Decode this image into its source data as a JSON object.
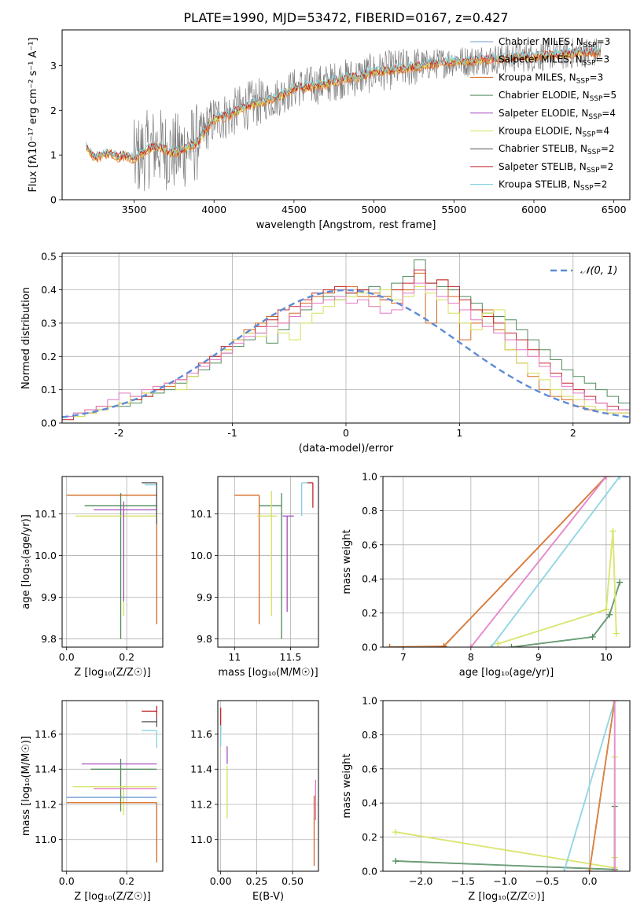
{
  "suptitle": "PLATE=1990, MJD=53472, FIBERID=0167, z=0.427",
  "colors": {
    "Chabrier MILES": "#6c9bd2",
    "Salpeter MILES": "#e8884c",
    "Kroupa MILES": "#d2691e",
    "Chabrier ELODIE": "#4f8a5b",
    "Salpeter ELODIE": "#a64dbf",
    "Kroupa ELODIE": "#d4e157",
    "Chabrier STELIB": "#555555",
    "Salpeter STELIB": "#c0262d",
    "Kroupa STELIB": "#7fd0df",
    "extra": "#e377c2",
    "normal": "#5b8bd6"
  },
  "chart_data": [
    {
      "id": "spectrum",
      "type": "line",
      "xlabel": "wavelength [Angstrom, rest frame]",
      "ylabel": "Flux [f$_\\lambda$ 10$^{-17}$ erg cm$^{-2}$ s$^{-1}$ A$^{-1}$]",
      "ylabel_text": "Flux [fλ10⁻¹⁷ erg cm⁻² s⁻¹ A⁻¹]",
      "xlim": [
        3050,
        6600
      ],
      "ylim": [
        0,
        3.8
      ],
      "xticks": [
        3500,
        4000,
        4500,
        5000,
        5500,
        6000,
        6500
      ],
      "yticks": [
        0,
        1,
        2,
        3
      ],
      "legend_position": "upper right",
      "legend": [
        {
          "label": "Chabrier MILES",
          "nssp": "3"
        },
        {
          "label": "Salpeter MILES",
          "nssp": "3"
        },
        {
          "label": "Kroupa MILES",
          "nssp": "3"
        },
        {
          "label": "Chabrier ELODIE",
          "nssp": "5"
        },
        {
          "label": "Salpeter ELODIE",
          "nssp": "4"
        },
        {
          "label": "Kroupa ELODIE",
          "nssp": "4"
        },
        {
          "label": "Chabrier STELIB",
          "nssp": "2"
        },
        {
          "label": "Salpeter STELIB",
          "nssp": "2"
        },
        {
          "label": "Kroupa STELIB",
          "nssp": "2"
        }
      ],
      "model_curve": {
        "x": [
          3200,
          3250,
          3300,
          3350,
          3400,
          3450,
          3500,
          3550,
          3600,
          3650,
          3700,
          3750,
          3800,
          3850,
          3900,
          3950,
          4000,
          4100,
          4200,
          4300,
          4400,
          4500,
          4600,
          4700,
          4800,
          4900,
          5000,
          5100,
          5200,
          5300,
          5400,
          5500,
          5600,
          5700,
          5800,
          5900,
          6000,
          6100,
          6200,
          6300,
          6400
        ],
        "y": [
          1.2,
          0.95,
          1.0,
          1.05,
          0.95,
          1.0,
          0.9,
          1.05,
          1.15,
          1.2,
          1.1,
          1.05,
          1.1,
          1.2,
          1.3,
          1.6,
          1.8,
          1.9,
          2.1,
          2.2,
          2.3,
          2.5,
          2.55,
          2.6,
          2.7,
          2.75,
          2.85,
          2.9,
          2.95,
          3.0,
          3.05,
          3.1,
          3.1,
          3.15,
          3.15,
          3.2,
          3.2,
          3.25,
          3.25,
          3.3,
          3.3
        ]
      }
    },
    {
      "id": "residuals",
      "type": "histogram",
      "xlabel": "(data-model)/error",
      "ylabel": "Normed distribution",
      "xlim": [
        -2.5,
        2.5
      ],
      "ylim": [
        0,
        0.51
      ],
      "xticks": [
        -2,
        -1,
        0,
        1,
        2
      ],
      "yticks": [
        0.0,
        0.1,
        0.2,
        0.3,
        0.4,
        0.5
      ],
      "grid": true,
      "legend": "$\\mathcal{N}(0,1)$",
      "legend_text": "𝒩(0, 1)",
      "bin_width": 0.1,
      "series": [
        {
          "name": "Chabrier ELODIE",
          "values": [
            0.02,
            0.03,
            0.03,
            0.04,
            0.05,
            0.05,
            0.06,
            0.08,
            0.09,
            0.1,
            0.12,
            0.14,
            0.16,
            0.18,
            0.21,
            0.23,
            0.25,
            0.27,
            0.24,
            0.28,
            0.32,
            0.34,
            0.36,
            0.38,
            0.37,
            0.39,
            0.4,
            0.41,
            0.38,
            0.42,
            0.44,
            0.49,
            0.42,
            0.41,
            0.4,
            0.38,
            0.36,
            0.33,
            0.32,
            0.31,
            0.28,
            0.25,
            0.22,
            0.19,
            0.16,
            0.14,
            0.12,
            0.1,
            0.08,
            0.06
          ]
        },
        {
          "name": "Kroupa MILES",
          "values": [
            0.02,
            0.02,
            0.04,
            0.05,
            0.05,
            0.06,
            0.07,
            0.09,
            0.1,
            0.11,
            0.13,
            0.15,
            0.17,
            0.2,
            0.22,
            0.25,
            0.28,
            0.3,
            0.32,
            0.3,
            0.33,
            0.36,
            0.38,
            0.39,
            0.4,
            0.41,
            0.38,
            0.39,
            0.38,
            0.36,
            0.4,
            0.45,
            0.3,
            0.43,
            0.38,
            0.25,
            0.3,
            0.34,
            0.28,
            0.22,
            0.18,
            0.14,
            0.1,
            0.08,
            0.07,
            0.05,
            0.04,
            0.04,
            0.03,
            0.03
          ]
        },
        {
          "name": "Salpeter STELIB",
          "values": [
            0.01,
            0.02,
            0.03,
            0.04,
            0.05,
            0.06,
            0.07,
            0.08,
            0.1,
            0.12,
            0.13,
            0.15,
            0.18,
            0.2,
            0.23,
            0.25,
            0.27,
            0.29,
            0.31,
            0.34,
            0.35,
            0.37,
            0.39,
            0.4,
            0.41,
            0.39,
            0.4,
            0.38,
            0.37,
            0.4,
            0.42,
            0.46,
            0.42,
            0.43,
            0.41,
            0.37,
            0.34,
            0.32,
            0.3,
            0.27,
            0.25,
            0.22,
            0.18,
            0.15,
            0.12,
            0.1,
            0.08,
            0.06,
            0.05,
            0.04
          ]
        },
        {
          "name": "Kroupa ELODIE",
          "values": [
            0.02,
            0.02,
            0.03,
            0.04,
            0.05,
            0.06,
            0.08,
            0.09,
            0.11,
            0.12,
            0.1,
            0.14,
            0.17,
            0.19,
            0.22,
            0.25,
            0.27,
            0.26,
            0.29,
            0.27,
            0.25,
            0.3,
            0.33,
            0.35,
            0.37,
            0.38,
            0.39,
            0.35,
            0.4,
            0.37,
            0.38,
            0.41,
            0.39,
            0.37,
            0.33,
            0.3,
            0.28,
            0.33,
            0.34,
            0.22,
            0.18,
            0.15,
            0.13,
            0.1,
            0.08,
            0.07,
            0.05,
            0.04,
            0.03,
            0.03
          ]
        },
        {
          "name": "extra",
          "values": [
            0.02,
            0.03,
            0.04,
            0.05,
            0.07,
            0.09,
            0.08,
            0.1,
            0.11,
            0.12,
            0.13,
            0.15,
            0.17,
            0.19,
            0.21,
            0.24,
            0.26,
            0.27,
            0.29,
            0.3,
            0.32,
            0.35,
            0.36,
            0.37,
            0.38,
            0.36,
            0.37,
            0.35,
            0.33,
            0.34,
            0.39,
            0.42,
            0.4,
            0.38,
            0.36,
            0.34,
            0.31,
            0.29,
            0.27,
            0.25,
            0.22,
            0.2,
            0.17,
            0.14,
            0.11,
            0.09,
            0.07,
            0.06,
            0.04,
            0.04
          ]
        }
      ],
      "normal_curve": {
        "name": "𝒩(0, 1)",
        "mean": 0,
        "sigma": 1
      }
    },
    {
      "id": "age_vs_Z",
      "type": "errorbar",
      "xlabel": "Z [log$_{10}$(Z/Z$_\\odot$)]",
      "xlabel_text": "Z [log₁₀(Z/Z☉)]",
      "ylabel": "age  [log$_{10}$(age/yr)]",
      "ylabel_text": "age  [log₁₀(age/yr)]",
      "xlim": [
        -0.015,
        0.32
      ],
      "ylim": [
        9.78,
        10.19
      ],
      "xticks": [
        0.0,
        0.2
      ],
      "yticks": [
        9.8,
        9.9,
        10.0,
        10.1
      ],
      "points": [
        {
          "s": "Kroupa MILES",
          "x": 0.3,
          "y": 10.145,
          "xerr": [
            0.3,
            0.0
          ],
          "yerr": [
            0.31,
            0.0
          ]
        },
        {
          "s": "Chabrier ELODIE",
          "x": 0.18,
          "y": 10.12,
          "xerr": [
            0.12,
            0.12
          ],
          "yerr": [
            0.32,
            0.03
          ]
        },
        {
          "s": "Kroupa ELODIE",
          "x": 0.19,
          "y": 10.095,
          "xerr": [
            0.16,
            0.11
          ],
          "yerr": [
            0.24,
            0.03
          ]
        },
        {
          "s": "Salpeter ELODIE",
          "x": 0.19,
          "y": 10.11,
          "xerr": [
            0.1,
            0.11
          ],
          "yerr": [
            0.22,
            0.02
          ]
        },
        {
          "s": "Kroupa STELIB",
          "x": 0.3,
          "y": 10.17,
          "xerr": [
            0.04,
            0.0
          ],
          "yerr": [
            0.08,
            0.0
          ]
        },
        {
          "s": "Chabrier STELIB",
          "x": 0.3,
          "y": 10.175,
          "xerr": [
            0.05,
            0.0
          ],
          "yerr": [
            0.1,
            0.0
          ]
        }
      ]
    },
    {
      "id": "age_vs_mass",
      "type": "errorbar",
      "xlabel": "mass [log$_{10}$(M/M$_\\odot$)]",
      "xlabel_text": "mass [log₁₀(M/M☉)]",
      "xlim": [
        10.85,
        11.75
      ],
      "ylim": [
        9.78,
        10.19
      ],
      "xticks": [
        11.0,
        11.5
      ],
      "yticks": [
        9.8,
        9.9,
        10.0,
        10.1
      ],
      "points": [
        {
          "s": "Kroupa MILES",
          "x": 11.22,
          "y": 10.145,
          "xerr": [
            0.22,
            0.0
          ],
          "yerr": [
            0.31,
            0.0
          ]
        },
        {
          "s": "Chabrier ELODIE",
          "x": 11.42,
          "y": 10.12,
          "xerr": [
            0.2,
            0.0
          ],
          "yerr": [
            0.32,
            0.03
          ]
        },
        {
          "s": "Kroupa ELODIE",
          "x": 11.33,
          "y": 10.095,
          "xerr": [
            0.13,
            0.05
          ],
          "yerr": [
            0.24,
            0.06
          ]
        },
        {
          "s": "Salpeter ELODIE",
          "x": 11.47,
          "y": 10.095,
          "xerr": [
            0.04,
            0.06
          ],
          "yerr": [
            0.23,
            0.0
          ]
        },
        {
          "s": "Kroupa STELIB",
          "x": 11.6,
          "y": 10.175,
          "xerr": [
            0.0,
            0.05
          ],
          "yerr": [
            0.08,
            0.0
          ]
        },
        {
          "s": "Salpeter STELIB",
          "x": 11.7,
          "y": 10.175,
          "xerr": [
            0.05,
            0.0
          ],
          "yerr": [
            0.06,
            0.0
          ]
        }
      ]
    },
    {
      "id": "massweight_vs_age",
      "type": "line",
      "xlabel": "age  [log$_{10}$(age/yr)]",
      "xlabel_text": "age  [log₁₀(age/yr)]",
      "ylabel": "mass weight",
      "xlim": [
        6.7,
        10.35
      ],
      "ylim": [
        0,
        1.0
      ],
      "xticks": [
        7,
        8,
        9,
        10
      ],
      "yticks": [
        0.0,
        0.2,
        0.4,
        0.6,
        0.8,
        1.0
      ],
      "grid": true,
      "series": [
        {
          "name": "Kroupa MILES",
          "x": [
            6.8,
            7.6,
            10.0
          ],
          "y": [
            0.0,
            0.005,
            1.0
          ]
        },
        {
          "name": "extra",
          "x": [
            8.0,
            10.0
          ],
          "y": [
            0.0,
            1.0
          ]
        },
        {
          "name": "Kroupa STELIB",
          "x": [
            8.3,
            10.2
          ],
          "y": [
            0.0,
            1.0
          ]
        },
        {
          "name": "Chabrier ELODIE",
          "x": [
            8.6,
            9.8,
            10.05,
            10.2
          ],
          "y": [
            0.0,
            0.06,
            0.19,
            0.38
          ]
        },
        {
          "name": "Kroupa ELODIE",
          "x": [
            8.4,
            10.0,
            10.1,
            10.15
          ],
          "y": [
            0.02,
            0.22,
            0.68,
            0.08
          ]
        }
      ]
    },
    {
      "id": "mass_vs_Z",
      "type": "errorbar",
      "xlabel": "Z [log$_{10}$(Z/Z$_\\odot$)]",
      "xlabel_text": "Z [log₁₀(Z/Z☉)]",
      "ylabel": "mass [log$_{10}$(M/M$_\\odot$)]",
      "ylabel_text": "mass [log₁₀(M/M☉)]",
      "xlim": [
        -0.015,
        0.32
      ],
      "ylim": [
        10.82,
        11.79
      ],
      "xticks": [
        0.0,
        0.2
      ],
      "yticks": [
        11.0,
        11.2,
        11.4,
        11.6
      ],
      "points": [
        {
          "s": "Salpeter STELIB",
          "x": 0.3,
          "y": 11.73,
          "xerr": [
            0.05,
            0.0
          ],
          "yerr": [
            0.03,
            0.03
          ]
        },
        {
          "s": "Chabrier STELIB",
          "x": 0.3,
          "y": 11.67,
          "xerr": [
            0.05,
            0.0
          ],
          "yerr": [
            0.03,
            0.03
          ]
        },
        {
          "s": "Kroupa STELIB",
          "x": 0.3,
          "y": 11.62,
          "xerr": [
            0.05,
            0.0
          ],
          "yerr": [
            0.1,
            0.0
          ]
        },
        {
          "s": "Salpeter ELODIE",
          "x": 0.19,
          "y": 11.43,
          "xerr": [
            0.14,
            0.11
          ],
          "yerr": [
            0.0,
            0.0
          ]
        },
        {
          "s": "Chabrier ELODIE",
          "x": 0.18,
          "y": 11.4,
          "xerr": [
            0.1,
            0.12
          ],
          "yerr": [
            0.24,
            0.06
          ]
        },
        {
          "s": "Kroupa ELODIE",
          "x": 0.19,
          "y": 11.3,
          "xerr": [
            0.17,
            0.11
          ],
          "yerr": [
            0.16,
            0.0
          ]
        },
        {
          "s": "extra",
          "x": 0.19,
          "y": 11.29,
          "xerr": [
            0.1,
            0.11
          ],
          "yerr": [
            0.0,
            0.0
          ]
        },
        {
          "s": "Chabrier MILES",
          "x": 0.3,
          "y": 11.24,
          "xerr": [
            0.3,
            0.0
          ],
          "yerr": [
            0.0,
            0.0
          ]
        },
        {
          "s": "Kroupa MILES",
          "x": 0.3,
          "y": 11.21,
          "xerr": [
            0.3,
            0.0
          ],
          "yerr": [
            0.34,
            0.0
          ]
        }
      ]
    },
    {
      "id": "mass_vs_ebv",
      "type": "errorbar",
      "xlabel": "E(B-V)",
      "xlim": [
        -0.02,
        0.68
      ],
      "ylim": [
        10.82,
        11.79
      ],
      "xticks": [
        0.0,
        0.25,
        0.5
      ],
      "xticklabels": [
        "0.00",
        "0.25",
        "0.50"
      ],
      "yticks": [
        11.0,
        11.2,
        11.4,
        11.6
      ],
      "points": [
        {
          "s": "Salpeter STELIB",
          "x": 0.0,
          "y": 11.68,
          "yerr": [
            0.07,
            0.07
          ]
        },
        {
          "s": "Kroupa STELIB",
          "x": 0.0,
          "y": 11.6,
          "yerr": [
            0.07,
            0.05
          ]
        },
        {
          "s": "Salpeter ELODIE",
          "x": 0.045,
          "y": 11.48,
          "yerr": [
            0.05,
            0.05
          ]
        },
        {
          "s": "Kroupa ELODIE",
          "x": 0.045,
          "y": 11.3,
          "yerr": [
            0.18,
            0.12
          ]
        },
        {
          "s": "Kroupa MILES",
          "x": 0.65,
          "y": 11.05,
          "yerr": [
            0.2,
            0.2
          ]
        },
        {
          "s": "extra",
          "x": 0.66,
          "y": 11.18,
          "yerr": [
            0.07,
            0.16
          ]
        }
      ]
    },
    {
      "id": "massweight_vs_Z",
      "type": "line",
      "xlabel": "Z [log$_{10}$(Z/Z$_\\odot$)]",
      "xlabel_text": "Z [log₁₀(Z/Z☉)]",
      "ylabel": "mass weight",
      "xlim": [
        -2.45,
        0.48
      ],
      "ylim": [
        0,
        1.0
      ],
      "xticks": [
        -2.0,
        -1.5,
        -1.0,
        -0.5,
        0.0
      ],
      "xticklabels": [
        "−2.0",
        "−1.5",
        "−1.0",
        "−0.5",
        "0.0"
      ],
      "yticks": [
        0.0,
        0.2,
        0.4,
        0.6,
        0.8,
        1.0
      ],
      "grid": true,
      "series": [
        {
          "name": "Kroupa ELODIE",
          "x": [
            -2.3,
            0.3,
            0.3,
            0.3
          ],
          "y": [
            0.23,
            0.02,
            0.67,
            0.08
          ]
        },
        {
          "name": "Chabrier ELODIE",
          "x": [
            -2.3,
            0.3,
            0.3
          ],
          "y": [
            0.06,
            0.01,
            0.38
          ]
        },
        {
          "name": "Kroupa STELIB",
          "x": [
            -0.3,
            0.3
          ],
          "y": [
            0.0,
            1.0
          ]
        },
        {
          "name": "Kroupa MILES",
          "x": [
            0.0,
            0.0,
            0.3
          ],
          "y": [
            0.0,
            0.0,
            1.0
          ]
        },
        {
          "name": "extra",
          "x": [
            0.3,
            0.3
          ],
          "y": [
            0.0,
            1.0
          ]
        }
      ]
    }
  ]
}
